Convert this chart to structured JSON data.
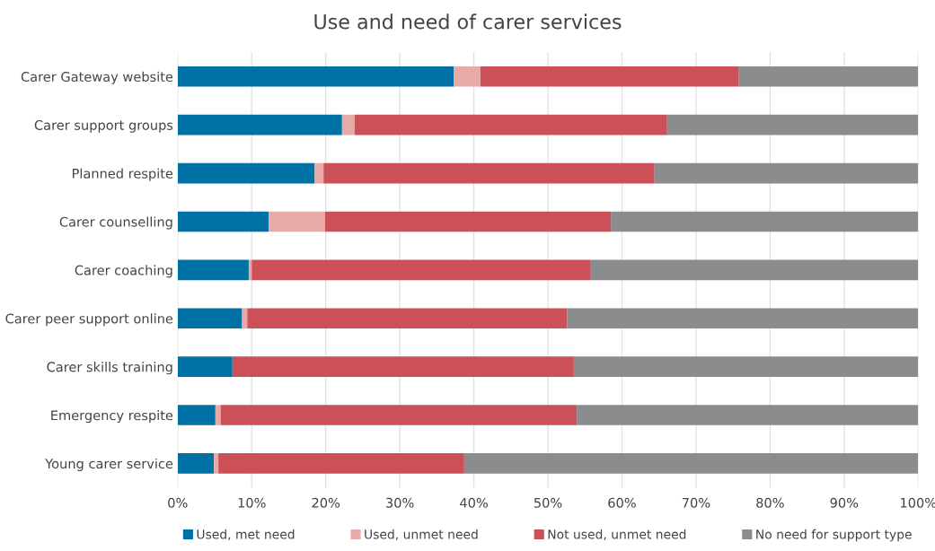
{
  "chart_data": {
    "type": "bar",
    "orientation": "horizontal",
    "stacked": true,
    "title": "Use and need of carer services",
    "categories": [
      "Carer Gateway website",
      "Carer support groups",
      "Planned respite",
      "Carer counselling",
      "Carer coaching",
      "Carer peer support online",
      "Carer skills training",
      "Emergency respite",
      "Young carer service"
    ],
    "series": [
      {
        "name": "Used, met need",
        "color": "#0071a4",
        "values": [
          37.3,
          22.2,
          18.5,
          12.3,
          9.6,
          8.7,
          7.4,
          5.1,
          4.9
        ]
      },
      {
        "name": "Used, unmet need",
        "color": "#e8aaa6",
        "values": [
          3.6,
          1.7,
          1.2,
          7.6,
          0.4,
          0.7,
          null,
          0.7,
          0.6
        ]
      },
      {
        "name": "Not used, unmet need",
        "color": "#cc5058",
        "values": [
          34.9,
          42.2,
          44.7,
          38.6,
          45.7,
          43.2,
          46.1,
          48.1,
          33.2
        ]
      },
      {
        "name": "No need for support type",
        "color": "#8a8c8e",
        "values": [
          24.2,
          33.9,
          35.6,
          41.5,
          44.3,
          47.4,
          46.5,
          46.1,
          61.3
        ]
      }
    ],
    "xlim": [
      0,
      100
    ],
    "xticks": [
      {
        "value": 0,
        "label": "0%"
      },
      {
        "value": 10,
        "label": "10%"
      },
      {
        "value": 20,
        "label": "20%"
      },
      {
        "value": 30,
        "label": "30%"
      },
      {
        "value": 40,
        "label": "40%"
      },
      {
        "value": 50,
        "label": "50%"
      },
      {
        "value": 60,
        "label": "60%"
      },
      {
        "value": 70,
        "label": "70%"
      },
      {
        "value": 80,
        "label": "80%"
      },
      {
        "value": 90,
        "label": "90%"
      },
      {
        "value": 100,
        "label": "100%"
      }
    ],
    "grid": "x",
    "legend": "bottom"
  }
}
